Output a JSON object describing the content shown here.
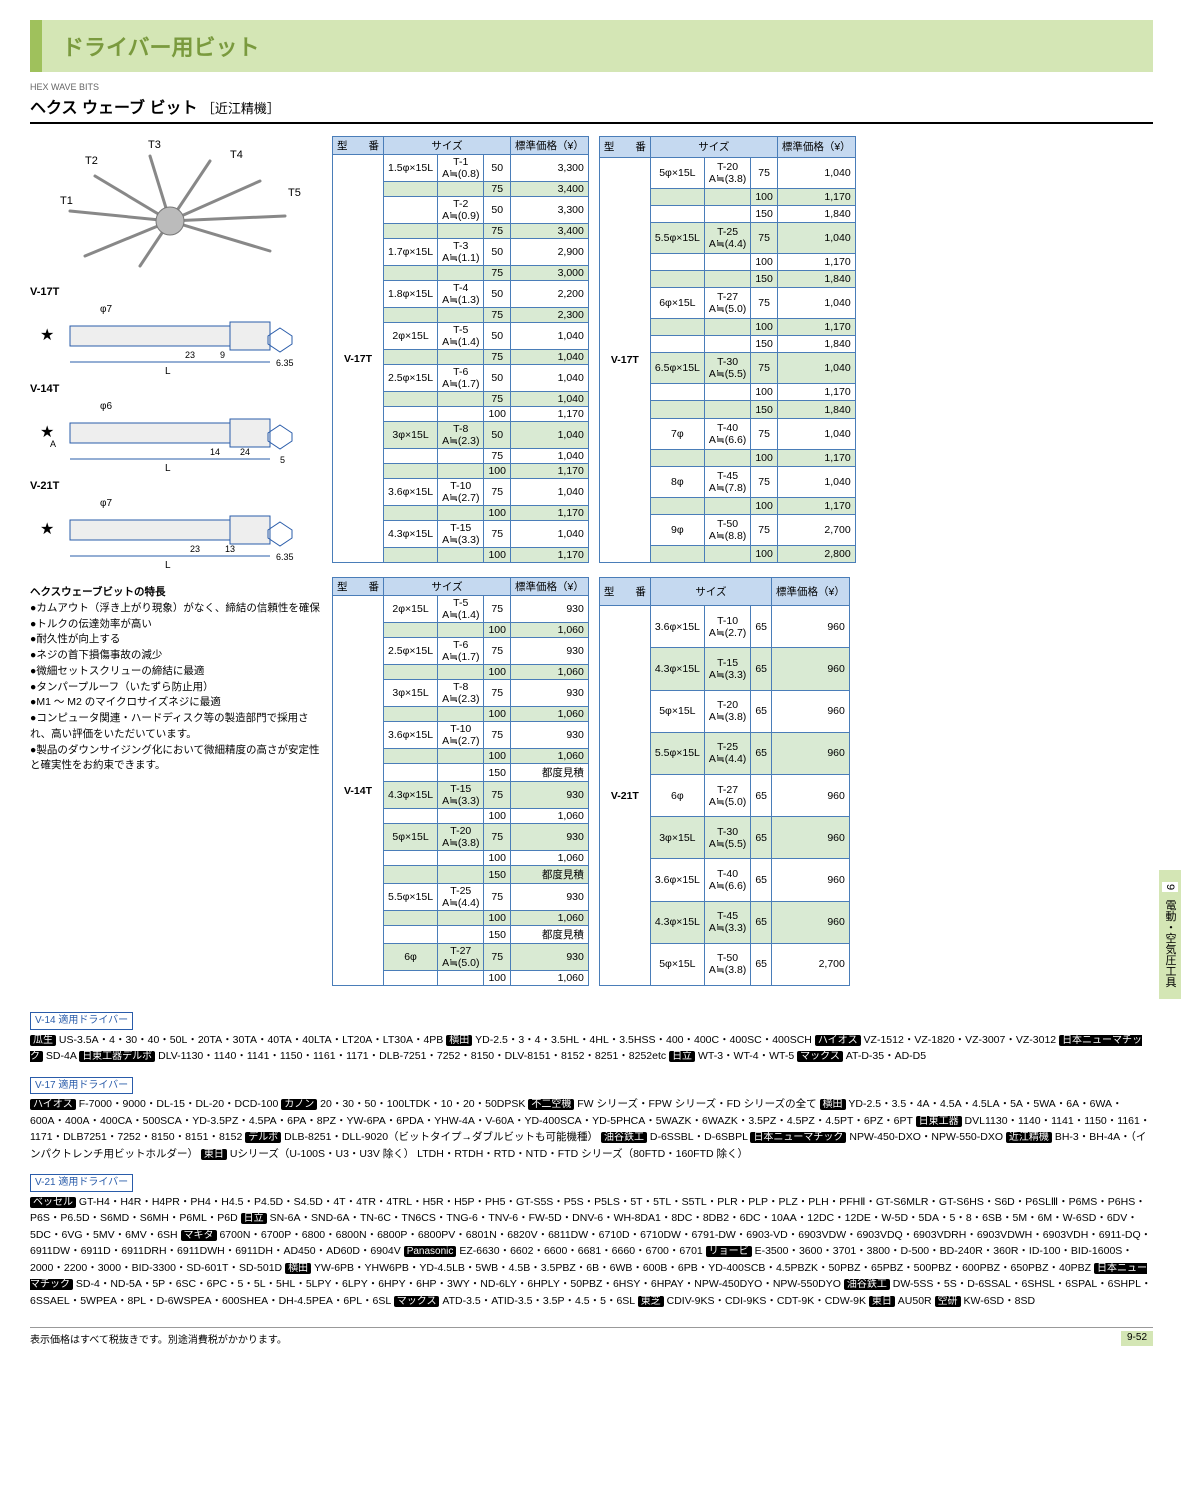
{
  "header": {
    "title": "ドライバー用ビット"
  },
  "subtitle": {
    "en": "HEX WAVE BITS",
    "jp": "ヘクス ウェーブ ビット",
    "brand": "［近江精機］"
  },
  "diagrams": {
    "starburst_labels": [
      "T1",
      "T2",
      "T3",
      "T4",
      "T5"
    ],
    "models": [
      "V-17T",
      "V-14T",
      "V-21T"
    ],
    "dim_phi7": "φ7",
    "dim_phi6": "φ6",
    "dim_9": "9",
    "dim_23": "23",
    "dim_6_35": "6.35",
    "dim_14": "14",
    "dim_24": "24",
    "dim_5": "5",
    "dim_13": "13",
    "dim_L": "L",
    "dim_A": "A"
  },
  "features": {
    "title": "ヘクスウェーブビットの特長",
    "items": [
      "●カムアウト（浮き上がり現象）がなく、締結の信頼性を確保",
      "●トルクの伝達効率が高い",
      "●耐久性が向上する",
      "●ネジの首下損傷事故の減少",
      "●微細セットスクリューの締結に最適",
      "●タンパープルーフ（いたずら防止用）",
      "●M1 〜 M2 のマイクロサイズネジに最適",
      "●コンピュータ関連・ハードディスク等の製造部門で採用され、高い評価をいただいています。",
      "●製品のダウンサイジング化において微細精度の高さが安定性と確実性をお約束できます。"
    ]
  },
  "tables": {
    "headers": {
      "model": "型　　番",
      "size": "サイズ",
      "price": "標準価格（¥）"
    },
    "v17t_left": {
      "model": "V-17T",
      "rows": [
        {
          "s": "1.5φ×15L",
          "t": "T-1",
          "a": "A≒(0.8)",
          "l": "50",
          "p": "3,300",
          "alt": false
        },
        {
          "s": "",
          "t": "",
          "a": "",
          "l": "75",
          "p": "3,400",
          "alt": true
        },
        {
          "s": "",
          "t": "T-2",
          "a": "A≒(0.9)",
          "l": "50",
          "p": "3,300",
          "alt": false
        },
        {
          "s": "",
          "t": "",
          "a": "",
          "l": "75",
          "p": "3,400",
          "alt": true
        },
        {
          "s": "1.7φ×15L",
          "t": "T-3",
          "a": "A≒(1.1)",
          "l": "50",
          "p": "2,900",
          "alt": false
        },
        {
          "s": "",
          "t": "",
          "a": "",
          "l": "75",
          "p": "3,000",
          "alt": true
        },
        {
          "s": "1.8φ×15L",
          "t": "T-4",
          "a": "A≒(1.3)",
          "l": "50",
          "p": "2,200",
          "alt": false
        },
        {
          "s": "",
          "t": "",
          "a": "",
          "l": "75",
          "p": "2,300",
          "alt": true
        },
        {
          "s": "2φ×15L",
          "t": "T-5",
          "a": "A≒(1.4)",
          "l": "50",
          "p": "1,040",
          "alt": false
        },
        {
          "s": "",
          "t": "",
          "a": "",
          "l": "75",
          "p": "1,040",
          "alt": true
        },
        {
          "s": "2.5φ×15L",
          "t": "T-6",
          "a": "A≒(1.7)",
          "l": "50",
          "p": "1,040",
          "alt": false
        },
        {
          "s": "",
          "t": "",
          "a": "",
          "l": "75",
          "p": "1,040",
          "alt": true
        },
        {
          "s": "",
          "t": "",
          "a": "",
          "l": "100",
          "p": "1,170",
          "alt": false
        },
        {
          "s": "3φ×15L",
          "t": "T-8",
          "a": "A≒(2.3)",
          "l": "50",
          "p": "1,040",
          "alt": true
        },
        {
          "s": "",
          "t": "",
          "a": "",
          "l": "75",
          "p": "1,040",
          "alt": false
        },
        {
          "s": "",
          "t": "",
          "a": "",
          "l": "100",
          "p": "1,170",
          "alt": true
        },
        {
          "s": "3.6φ×15L",
          "t": "T-10",
          "a": "A≒(2.7)",
          "l": "75",
          "p": "1,040",
          "alt": false
        },
        {
          "s": "",
          "t": "",
          "a": "",
          "l": "100",
          "p": "1,170",
          "alt": true
        },
        {
          "s": "4.3φ×15L",
          "t": "T-15",
          "a": "A≒(3.3)",
          "l": "75",
          "p": "1,040",
          "alt": false
        },
        {
          "s": "",
          "t": "",
          "a": "",
          "l": "100",
          "p": "1,170",
          "alt": true
        }
      ]
    },
    "v17t_right": {
      "model": "V-17T",
      "rows": [
        {
          "s": "5φ×15L",
          "t": "T-20",
          "a": "A≒(3.8)",
          "l": "75",
          "p": "1,040",
          "alt": false
        },
        {
          "s": "",
          "t": "",
          "a": "",
          "l": "100",
          "p": "1,170",
          "alt": true
        },
        {
          "s": "",
          "t": "",
          "a": "",
          "l": "150",
          "p": "1,840",
          "alt": false
        },
        {
          "s": "5.5φ×15L",
          "t": "T-25",
          "a": "A≒(4.4)",
          "l": "75",
          "p": "1,040",
          "alt": true
        },
        {
          "s": "",
          "t": "",
          "a": "",
          "l": "100",
          "p": "1,170",
          "alt": false
        },
        {
          "s": "",
          "t": "",
          "a": "",
          "l": "150",
          "p": "1,840",
          "alt": true
        },
        {
          "s": "6φ×15L",
          "t": "T-27",
          "a": "A≒(5.0)",
          "l": "75",
          "p": "1,040",
          "alt": false
        },
        {
          "s": "",
          "t": "",
          "a": "",
          "l": "100",
          "p": "1,170",
          "alt": true
        },
        {
          "s": "",
          "t": "",
          "a": "",
          "l": "150",
          "p": "1,840",
          "alt": false
        },
        {
          "s": "6.5φ×15L",
          "t": "T-30",
          "a": "A≒(5.5)",
          "l": "75",
          "p": "1,040",
          "alt": true
        },
        {
          "s": "",
          "t": "",
          "a": "",
          "l": "100",
          "p": "1,170",
          "alt": false
        },
        {
          "s": "",
          "t": "",
          "a": "",
          "l": "150",
          "p": "1,840",
          "alt": true
        },
        {
          "s": "7φ",
          "t": "T-40",
          "a": "A≒(6.6)",
          "l": "75",
          "p": "1,040",
          "alt": false
        },
        {
          "s": "",
          "t": "",
          "a": "",
          "l": "100",
          "p": "1,170",
          "alt": true
        },
        {
          "s": "8φ",
          "t": "T-45",
          "a": "A≒(7.8)",
          "l": "75",
          "p": "1,040",
          "alt": false
        },
        {
          "s": "",
          "t": "",
          "a": "",
          "l": "100",
          "p": "1,170",
          "alt": true
        },
        {
          "s": "9φ",
          "t": "T-50",
          "a": "A≒(8.8)",
          "l": "75",
          "p": "2,700",
          "alt": false
        },
        {
          "s": "",
          "t": "",
          "a": "",
          "l": "100",
          "p": "2,800",
          "alt": true
        }
      ]
    },
    "v14t": {
      "model": "V-14T",
      "rows": [
        {
          "s": "2φ×15L",
          "t": "T-5",
          "a": "A≒(1.4)",
          "l": "75",
          "p": "930",
          "alt": false
        },
        {
          "s": "",
          "t": "",
          "a": "",
          "l": "100",
          "p": "1,060",
          "alt": true
        },
        {
          "s": "2.5φ×15L",
          "t": "T-6",
          "a": "A≒(1.7)",
          "l": "75",
          "p": "930",
          "alt": false
        },
        {
          "s": "",
          "t": "",
          "a": "",
          "l": "100",
          "p": "1,060",
          "alt": true
        },
        {
          "s": "3φ×15L",
          "t": "T-8",
          "a": "A≒(2.3)",
          "l": "75",
          "p": "930",
          "alt": false
        },
        {
          "s": "",
          "t": "",
          "a": "",
          "l": "100",
          "p": "1,060",
          "alt": true
        },
        {
          "s": "3.6φ×15L",
          "t": "T-10",
          "a": "A≒(2.7)",
          "l": "75",
          "p": "930",
          "alt": false
        },
        {
          "s": "",
          "t": "",
          "a": "",
          "l": "100",
          "p": "1,060",
          "alt": true
        },
        {
          "s": "",
          "t": "",
          "a": "",
          "l": "150",
          "p": "都度見積",
          "alt": false
        },
        {
          "s": "4.3φ×15L",
          "t": "T-15",
          "a": "A≒(3.3)",
          "l": "75",
          "p": "930",
          "alt": true
        },
        {
          "s": "",
          "t": "",
          "a": "",
          "l": "100",
          "p": "1,060",
          "alt": false
        },
        {
          "s": "5φ×15L",
          "t": "T-20",
          "a": "A≒(3.8)",
          "l": "75",
          "p": "930",
          "alt": true
        },
        {
          "s": "",
          "t": "",
          "a": "",
          "l": "100",
          "p": "1,060",
          "alt": false
        },
        {
          "s": "",
          "t": "",
          "a": "",
          "l": "150",
          "p": "都度見積",
          "alt": true
        },
        {
          "s": "5.5φ×15L",
          "t": "T-25",
          "a": "A≒(4.4)",
          "l": "75",
          "p": "930",
          "alt": false
        },
        {
          "s": "",
          "t": "",
          "a": "",
          "l": "100",
          "p": "1,060",
          "alt": true
        },
        {
          "s": "",
          "t": "",
          "a": "",
          "l": "150",
          "p": "都度見積",
          "alt": false
        },
        {
          "s": "6φ",
          "t": "T-27",
          "a": "A≒(5.0)",
          "l": "75",
          "p": "930",
          "alt": true
        },
        {
          "s": "",
          "t": "",
          "a": "",
          "l": "100",
          "p": "1,060",
          "alt": false
        }
      ]
    },
    "v21t": {
      "model": "V-21T",
      "rows": [
        {
          "s": "3.6φ×15L",
          "t": "T-10",
          "a": "A≒(2.7)",
          "l": "65",
          "p": "960",
          "alt": false
        },
        {
          "s": "4.3φ×15L",
          "t": "T-15",
          "a": "A≒(3.3)",
          "l": "65",
          "p": "960",
          "alt": true
        },
        {
          "s": "5φ×15L",
          "t": "T-20",
          "a": "A≒(3.8)",
          "l": "65",
          "p": "960",
          "alt": false
        },
        {
          "s": "5.5φ×15L",
          "t": "T-25",
          "a": "A≒(4.4)",
          "l": "65",
          "p": "960",
          "alt": true
        },
        {
          "s": "6φ",
          "t": "T-27",
          "a": "A≒(5.0)",
          "l": "65",
          "p": "960",
          "alt": false
        },
        {
          "s": "3φ×15L",
          "t": "T-30",
          "a": "A≒(5.5)",
          "l": "65",
          "p": "960",
          "alt": true
        },
        {
          "s": "3.6φ×15L",
          "t": "T-40",
          "a": "A≒(6.6)",
          "l": "65",
          "p": "960",
          "alt": false
        },
        {
          "s": "4.3φ×15L",
          "t": "T-45",
          "a": "A≒(3.3)",
          "l": "65",
          "p": "960",
          "alt": true
        },
        {
          "s": "5φ×15L",
          "t": "T-50",
          "a": "A≒(3.8)",
          "l": "65",
          "p": "2,700",
          "alt": false
        }
      ]
    }
  },
  "drivers": {
    "v14": {
      "title": "V-14 適用ドライバー",
      "body": "[[瓜生]] US-3.5A・4・30・40・50L・20TA・30TA・40TA・40LTA・LT20A・LT30A・4PB [[横田]] YD-2.5・3・4・3.5HL・4HL・3.5HSS・400・400C・400SC・400SCH [[ハイオス]] VZ-1512・VZ-1820・VZ-3007・VZ-3012 [[日本ニューマチック]] SD-4A [[日東工器デルボ]] DLV-1130・1140・1141・1150・1161・1171・DLB-7251・7252・8150・DLV-8151・8152・8251・8252etc [[日立]] WT-3・WT-4・WT-5 [[マックス]] AT-D-35・AD-D5"
    },
    "v17": {
      "title": "V-17 適用ドライバー",
      "body": "[[ハイオス]] F-7000・9000・DL-15・DL-20・DCD-100 [[カノン]] 20・30・50・100LTDK・10・20・50DPSK [[不二空機]] FW シリーズ・FPW シリーズ・FD シリーズの全て [[横田]] YD-2.5・3.5・4A・4.5A・4.5LA・5A・5WA・6A・6WA・600A・400A・400CA・500SCA・YD-3.5PZ・4.5PA・6PA・8PZ・YW-6PA・6PDA・YHW-4A・V-60A・YD-400SCA・YD-5PHCA・5WAZK・6WAZK・3.5PZ・4.5PZ・4.5PT・6PZ・6PT [[日東工器]] DVL1130・1140・1141・1150・1161・1171・DLB7251・7252・8150・8151・8152 [[デルボ]] DLB-8251・DLL-9020（ビットタイプ→ダブルビットも可能機種） [[油谷鉄工]] D-6SSBL・D-6SBPL [[日本ニューマチック]] NPW-450-DXO・NPW-550-DXO [[近江精機]] BH-3・BH-4A・（インパクトレンチ用ビットホルダー） [[東日]] Uシリーズ（U-100S・U3・U3V 除く） LTDH・RTDH・RTD・NTD・FTD シリーズ（80FTD・160FTD 除く）"
    },
    "v21": {
      "title": "V-21 適用ドライバー",
      "body": "[[ベッセル]] GT-H4・H4R・H4PR・PH4・H4.5・P4.5D・S4.5D・4T・4TR・4TRL・H5R・H5P・PH5・GT-S5S・P5S・P5LS・5T・5TL・S5TL・PLR・PLP・PLZ・PLH・PFHⅡ・GT-S6MLR・GT-S6HS・S6D・P6SLⅢ・P6MS・P6HS・P6S・P6.5D・S6MD・S6MH・P6ML・P6D [[日立]] SN-6A・SND-6A・TN-6C・TN6CS・TNG-6・TNV-6・FW-5D・DNV-6・WH-8DA1・8DC・8DB2・6DC・10AA・12DC・12DE・W-5D・5DA・5・8・6SB・5M・6M・W-6SD・6DV・5DC・6VG・5MV・6MV・6SH [[マキタ]] 6700N・6700P・6800・6800N・6800P・6800PV・6801N・6820V・6811DW・6710D・6710DW・6791-DW・6903-VD・6903VDW・6903VDQ・6903VDRH・6903VDWH・6903VDH・6911-DQ・6911DW・6911D・6911DRH・6911DWH・6911DH・AD450・AD60D・6904V [[Panasonic]] EZ-6630・6602・6600・6681・6660・6700・6701 [[リョービ]] E-3500・3600・3701・3800・D-500・BD-240R・360R・ID-100・BID-1600S・2000・2200・3000・BID-3300・SD-601T・SD-501D [[横田]] YW-6PB・YHW6PB・YD-4.5LB・5WB・4.5B・3.5PBZ・6B・6WB・600B・6PB・YD-400SCB・4.5PBZK・50PBZ・65PBZ・500PBZ・600PBZ・650PBZ・40PBZ [[日本ニューマチック]] SD-4・ND-5A・5P・6SC・6PC・5・5L・5HL・5LPY・6LPY・6HPY・6HP・3WY・ND-6LY・6HPLY・50PBZ・6HSY・6HPAY・NPW-450DYO・NPW-550DYO [[油谷鉄工]] DW-5SS・5S・D-6SSAL・6SHSL・6SPAL・6SHPL・6SSAEL・5WPEA・8PL・D-6WSPEA・600SHEA・DH-4.5PEA・6PL・6SL [[マックス]] ATD-3.5・ATID-3.5・3.5P・4.5・5・6SL [[東芝]] CDIV-9KS・CDI-9KS・CDT-9K・CDW-9K [[東日]] AU50R [[空研]] KW-6SD・8SD"
    }
  },
  "footer": {
    "note": "表示価格はすべて税抜きです。別途消費税がかかります。",
    "page": "9-52"
  },
  "sidetab": {
    "num": "9",
    "text": "電動・空気圧工具"
  }
}
